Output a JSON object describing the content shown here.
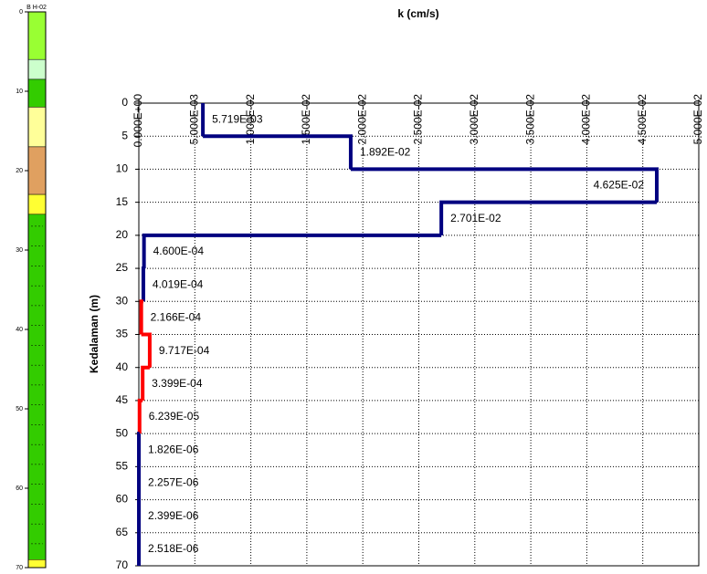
{
  "chart_data": {
    "type": "step",
    "title": "k (cm/s)",
    "y_label": "Kedalaman (m)",
    "y_inverted": true,
    "grid": true,
    "xlim": [
      0,
      0.05
    ],
    "ylim": [
      0,
      70
    ],
    "xticks": [
      {
        "value": 0,
        "label": "0.000E+00"
      },
      {
        "value": 0.005,
        "label": "5.000E-03"
      },
      {
        "value": 0.01,
        "label": "1.000E-02"
      },
      {
        "value": 0.015,
        "label": "1.500E-02"
      },
      {
        "value": 0.02,
        "label": "2.000E-02"
      },
      {
        "value": 0.025,
        "label": "2.500E-02"
      },
      {
        "value": 0.03,
        "label": "3.000E-02"
      },
      {
        "value": 0.035,
        "label": "3.500E-02"
      },
      {
        "value": 0.04,
        "label": "4.000E-02"
      },
      {
        "value": 0.045,
        "label": "4.500E-02"
      },
      {
        "value": 0.05,
        "label": "5.000E-02"
      }
    ],
    "yticks": [
      0,
      5,
      10,
      15,
      20,
      25,
      30,
      35,
      40,
      45,
      50,
      55,
      60,
      65,
      70
    ],
    "depth_bins": [
      0,
      5,
      10,
      15,
      20,
      25,
      30,
      35,
      40,
      45,
      50,
      55,
      60,
      65,
      70
    ],
    "values": [
      0.005719,
      0.01892,
      0.04625,
      0.02701,
      0.00046,
      0.0004019,
      0.0002166,
      0.0009717,
      0.0003399,
      6.239e-05,
      1.826e-06,
      2.257e-06,
      2.399e-06,
      2.518e-06
    ],
    "value_labels": [
      "5.719E-03",
      "1.892E-02",
      "4.625E-02",
      "2.701E-02",
      "4.600E-04",
      "4.019E-04",
      "2.166E-04",
      "9.717E-04",
      "3.399E-04",
      "6.239E-05",
      "1.826E-06",
      "2.257E-06",
      "2.399E-06",
      "2.518E-06"
    ],
    "colors": [
      "#000080",
      "#000080",
      "#000080",
      "#000080",
      "#000080",
      "#000080",
      "#ff0000",
      "#ff0000",
      "#ff0000",
      "#ff0000",
      "#000080",
      "#000080",
      "#000080",
      "#000080"
    ]
  },
  "borehole": {
    "label": "B H-02",
    "depth_ticks": [
      0,
      10,
      20,
      30,
      40,
      50,
      60,
      70
    ],
    "layers": [
      {
        "top": 0,
        "bottom": 6,
        "color": "#99ff33"
      },
      {
        "top": 6,
        "bottom": 8.5,
        "color": "#ccffcc"
      },
      {
        "top": 8.5,
        "bottom": 12,
        "color": "#33cc00"
      },
      {
        "top": 12,
        "bottom": 17,
        "color": "#ffff99"
      },
      {
        "top": 17,
        "bottom": 23,
        "color": "#e0a060"
      },
      {
        "top": 23,
        "bottom": 25.5,
        "color": "#ffff33"
      },
      {
        "top": 25.5,
        "bottom": 69,
        "color": "#33cc00"
      },
      {
        "top": 69,
        "bottom": 70,
        "color": "#ffff33"
      }
    ]
  }
}
